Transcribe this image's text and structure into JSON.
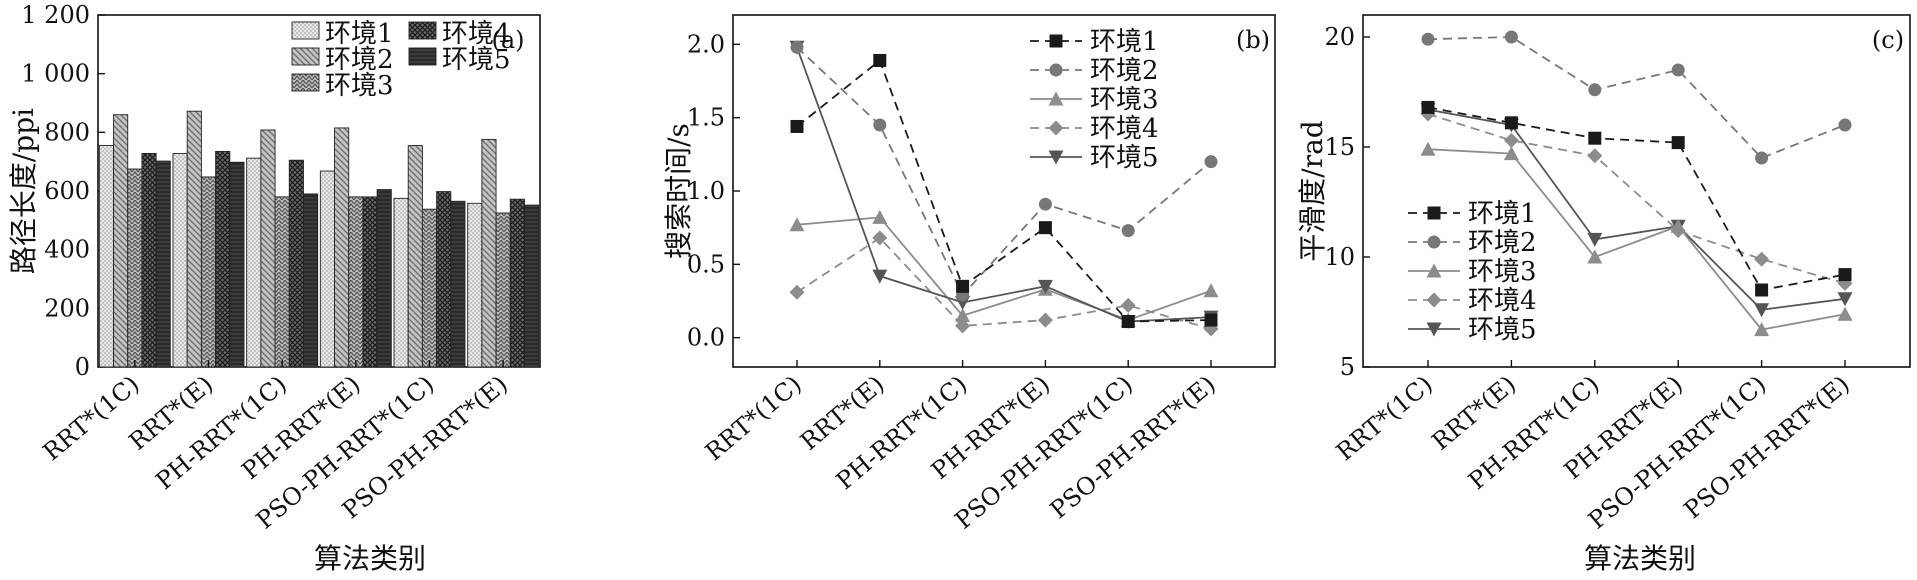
{
  "chart_data": [
    {
      "type": "bar",
      "panel_label": "(a)",
      "categories": [
        "RRT*(1C)",
        "RRT*(E)",
        "PH-RRT*(1C)",
        "PH-RRT*(E)",
        "PSO-PH-RRT*(1C)",
        "PSO-PH-RRT*(E)"
      ],
      "series": [
        {
          "name": "环境1",
          "values": [
            755,
            728,
            712,
            668,
            575,
            558
          ]
        },
        {
          "name": "环境2",
          "values": [
            860,
            872,
            808,
            815,
            755,
            776
          ]
        },
        {
          "name": "环境3",
          "values": [
            675,
            648,
            580,
            580,
            538,
            525
          ]
        },
        {
          "name": "环境4",
          "values": [
            728,
            735,
            705,
            580,
            598,
            572
          ]
        },
        {
          "name": "环境5",
          "values": [
            702,
            698,
            590,
            605,
            565,
            552
          ]
        }
      ],
      "xlabel": "算法类别",
      "ylabel": "路径长度/ppi",
      "ylim": [
        0,
        1200
      ],
      "yticks": [
        0,
        200,
        400,
        600,
        800,
        1000,
        1200
      ],
      "ytick_labels": [
        "0",
        "200",
        "400",
        "600",
        "800",
        "1 000",
        "1 200"
      ],
      "legend_position": "top-center"
    },
    {
      "type": "line",
      "panel_label": "(b)",
      "categories": [
        "RRT*(1C)",
        "RRT*(E)",
        "PH-RRT*(1C)",
        "PH-RRT*(E)",
        "PSO-PH-RRT*(1C)",
        "PSO-PH-RRT*(E)"
      ],
      "series": [
        {
          "name": "环境1",
          "values": [
            1.44,
            1.89,
            0.35,
            0.75,
            0.11,
            0.12
          ]
        },
        {
          "name": "环境2",
          "values": [
            1.98,
            1.45,
            0.29,
            0.91,
            0.73,
            1.2
          ]
        },
        {
          "name": "环境3",
          "values": [
            0.77,
            0.82,
            0.15,
            0.33,
            0.12,
            0.32
          ]
        },
        {
          "name": "环境4",
          "values": [
            0.31,
            0.68,
            0.08,
            0.12,
            0.22,
            0.06
          ]
        },
        {
          "name": "环境5",
          "values": [
            1.98,
            0.42,
            0.24,
            0.35,
            0.11,
            0.14
          ]
        }
      ],
      "xlabel": "",
      "ylabel": "搜索时间/s",
      "ylim": [
        -0.2,
        2.2
      ],
      "yticks": [
        0.0,
        0.5,
        1.0,
        1.5,
        2.0
      ],
      "ytick_labels": [
        "0.0",
        "0.5",
        "1.0",
        "1.5",
        "2.0"
      ],
      "legend_position": "top-right"
    },
    {
      "type": "line",
      "panel_label": "(c)",
      "categories": [
        "RRT*(1C)",
        "RRT*(E)",
        "PH-RRT*(1C)",
        "PH-RRT*(E)",
        "PSO-PH-RRT*(1C)",
        "PSO-PH-RRT*(E)"
      ],
      "series": [
        {
          "name": "环境1",
          "values": [
            16.8,
            16.1,
            15.4,
            15.2,
            8.5,
            9.2
          ]
        },
        {
          "name": "环境2",
          "values": [
            19.9,
            20.0,
            17.6,
            18.5,
            14.5,
            16.0
          ]
        },
        {
          "name": "环境3",
          "values": [
            14.9,
            14.7,
            10.0,
            11.4,
            6.7,
            7.4
          ]
        },
        {
          "name": "环境4",
          "values": [
            16.5,
            15.3,
            14.6,
            11.2,
            9.9,
            8.8
          ]
        },
        {
          "name": "环境5",
          "values": [
            16.7,
            16.0,
            10.8,
            11.4,
            7.6,
            8.1
          ]
        }
      ],
      "xlabel": "算法类别",
      "ylabel": "平滑度/rad",
      "ylim": [
        5,
        21
      ],
      "yticks": [
        5,
        10,
        15,
        20
      ],
      "ytick_labels": [
        "5",
        "10",
        "15",
        "20"
      ],
      "legend_position": "center-left"
    }
  ],
  "colors": {
    "env1": "#d9d9d9",
    "env2": "#a6a6a6",
    "env3": "#9a9a9a",
    "env4": "#595959",
    "env5": "#262626",
    "line_dark": "#1a1a1a",
    "line_gray": "#777777",
    "line_light": "#8c8c8c"
  }
}
